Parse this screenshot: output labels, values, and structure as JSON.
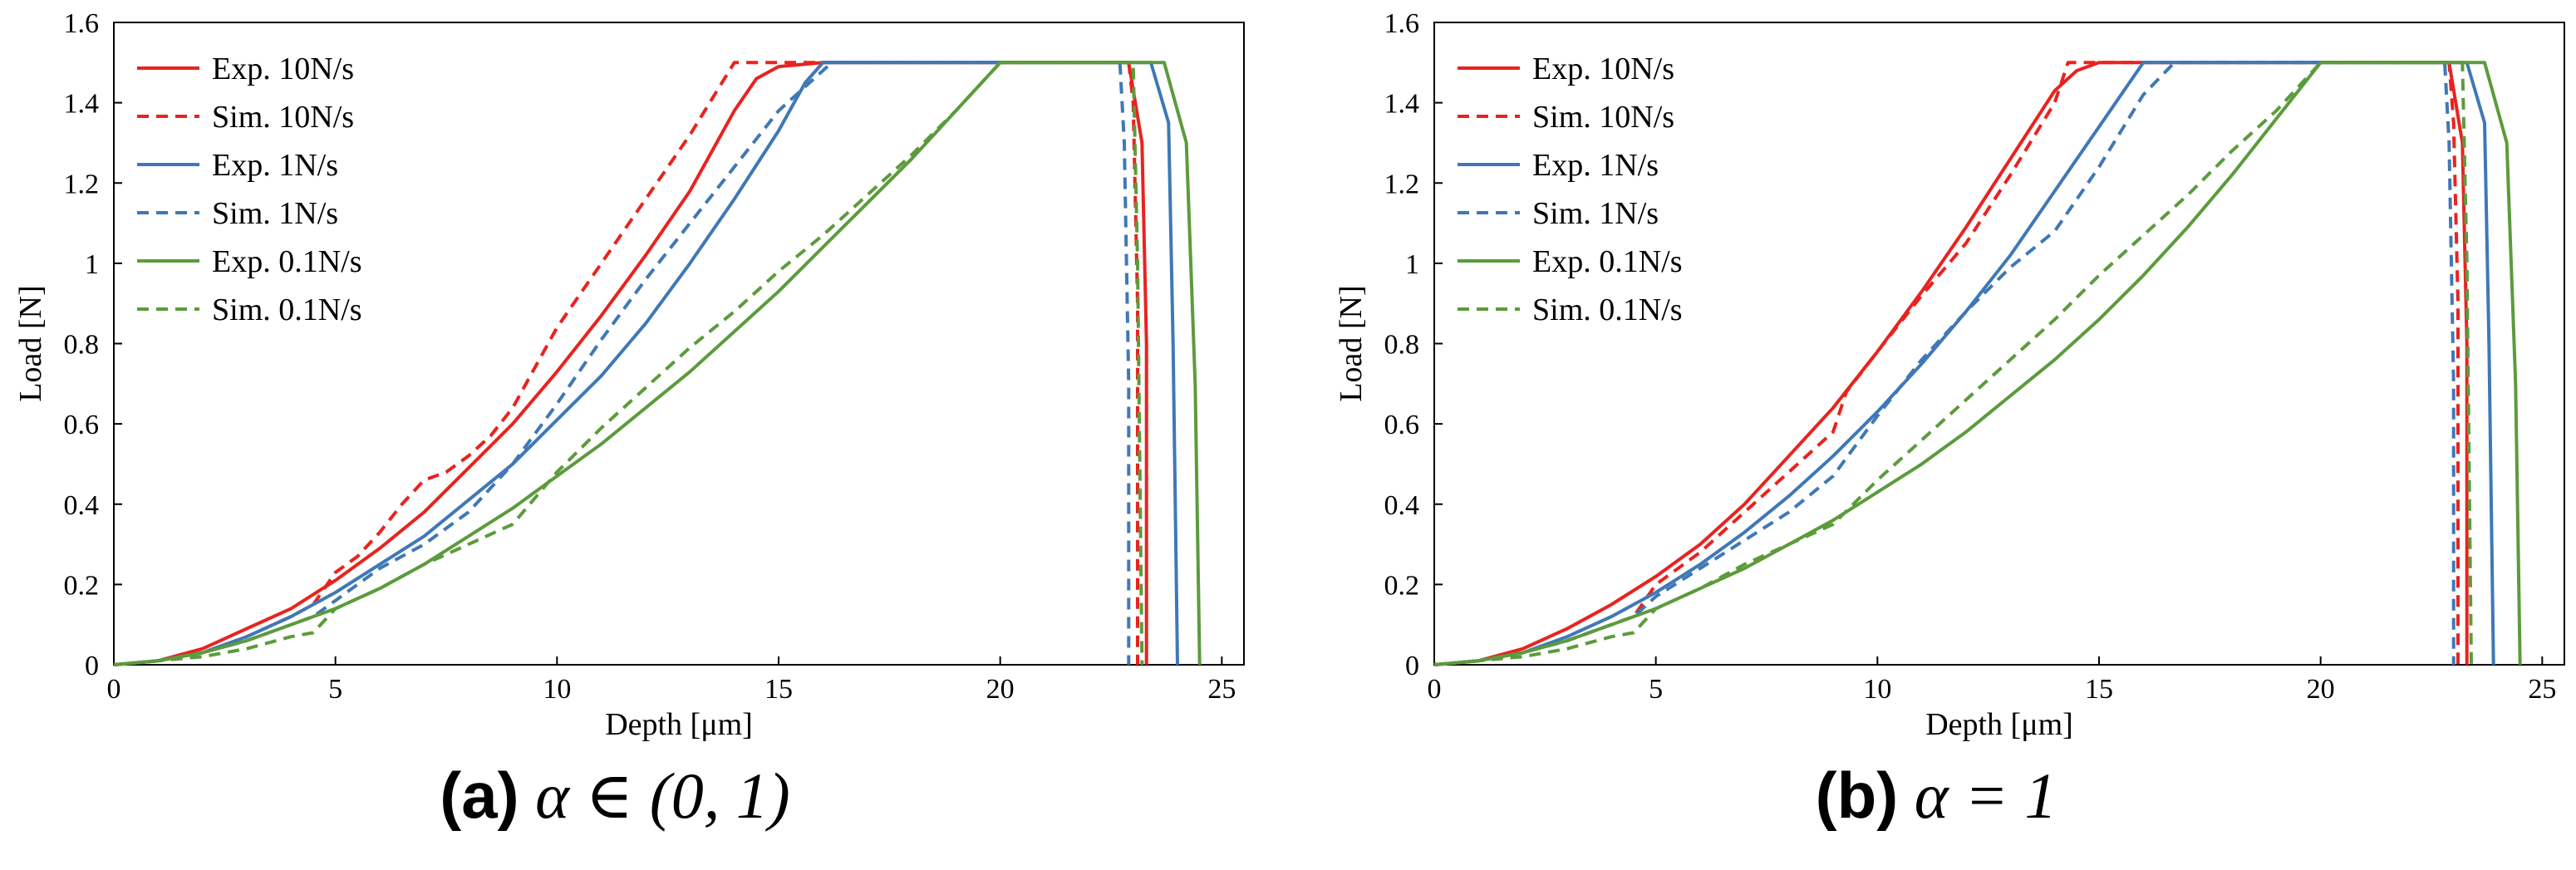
{
  "colors": {
    "red": "#E8231F",
    "blue": "#3F78B6",
    "green": "#5C9B3C",
    "axis": "#000000"
  },
  "captions": [
    {
      "letter": "(a)",
      "math": "α ∈ (0, 1)"
    },
    {
      "letter": "(b)",
      "math": "α = 1"
    }
  ],
  "chart_data": [
    {
      "type": "line",
      "panel": "a",
      "xlabel": "Depth [μm]",
      "ylabel": "Load [N]",
      "xlim": [
        0,
        25.5
      ],
      "ylim": [
        0,
        1.6
      ],
      "xticks": [
        0,
        5,
        10,
        15,
        20,
        25
      ],
      "yticks": [
        0,
        0.2,
        0.4,
        0.6,
        0.8,
        1,
        1.2,
        1.4,
        1.6
      ],
      "grid": false,
      "legend_position": "top-left",
      "series": [
        {
          "name": "Exp. 10N/s",
          "color": "red",
          "style": "solid",
          "x": [
            0,
            1,
            2,
            3,
            4,
            5,
            6,
            7,
            8,
            9,
            10,
            11,
            12,
            13,
            13.5,
            14,
            14.5,
            15,
            16,
            20,
            22.9,
            23.2,
            23.3,
            23.3
          ],
          "y": [
            0,
            0.01,
            0.04,
            0.09,
            0.14,
            0.21,
            0.29,
            0.38,
            0.49,
            0.6,
            0.73,
            0.87,
            1.02,
            1.18,
            1.28,
            1.38,
            1.46,
            1.49,
            1.5,
            1.5,
            1.5,
            1.3,
            0.8,
            0
          ]
        },
        {
          "name": "Sim. 10N/s",
          "color": "red",
          "style": "dashed",
          "x": [
            0,
            1,
            2,
            3,
            4,
            4.5,
            5,
            5.5,
            6,
            6.5,
            7,
            7.5,
            8,
            8.5,
            9,
            10,
            11,
            12,
            13,
            14,
            14.3,
            20,
            22.9,
            23.0,
            23.1,
            23.1
          ],
          "y": [
            0,
            0.01,
            0.03,
            0.07,
            0.12,
            0.15,
            0.23,
            0.27,
            0.33,
            0.4,
            0.46,
            0.48,
            0.52,
            0.57,
            0.64,
            0.84,
            1.0,
            1.16,
            1.32,
            1.5,
            1.5,
            1.5,
            1.5,
            1.4,
            0.9,
            0
          ]
        },
        {
          "name": "Exp. 1N/s",
          "color": "blue",
          "style": "solid",
          "x": [
            0,
            1,
            2,
            3,
            4,
            5,
            6,
            7,
            8,
            9,
            10,
            11,
            12,
            13,
            14,
            15,
            15.6,
            16,
            20,
            23.4,
            23.8,
            23.9,
            24.0
          ],
          "y": [
            0,
            0.01,
            0.03,
            0.07,
            0.12,
            0.18,
            0.25,
            0.32,
            0.41,
            0.5,
            0.61,
            0.72,
            0.85,
            1.0,
            1.16,
            1.33,
            1.45,
            1.5,
            1.5,
            1.5,
            1.35,
            0.8,
            0
          ]
        },
        {
          "name": "Sim. 1N/s",
          "color": "blue",
          "style": "dashed",
          "x": [
            0,
            1,
            2,
            3,
            4,
            4.5,
            5,
            6,
            7,
            8,
            9,
            10,
            11,
            12,
            13,
            14,
            15,
            16.2,
            20,
            22.7,
            22.8,
            22.9,
            22.9
          ],
          "y": [
            0,
            0.01,
            0.03,
            0.06,
            0.1,
            0.12,
            0.16,
            0.24,
            0.3,
            0.38,
            0.5,
            0.65,
            0.81,
            0.96,
            1.1,
            1.24,
            1.38,
            1.5,
            1.5,
            1.5,
            1.3,
            0.7,
            0
          ]
        },
        {
          "name": "Exp. 0.1N/s",
          "color": "green",
          "style": "solid",
          "x": [
            0,
            1,
            2,
            3,
            4,
            5,
            6,
            7,
            8,
            9,
            10,
            11,
            12,
            13,
            14,
            15,
            16,
            17,
            18,
            19,
            20,
            23.7,
            24.2,
            24.4,
            24.5
          ],
          "y": [
            0,
            0.01,
            0.03,
            0.06,
            0.1,
            0.14,
            0.19,
            0.25,
            0.32,
            0.39,
            0.47,
            0.55,
            0.64,
            0.73,
            0.83,
            0.93,
            1.04,
            1.15,
            1.26,
            1.38,
            1.5,
            1.5,
            1.3,
            0.7,
            0
          ]
        },
        {
          "name": "Sim. 0.1N/s",
          "color": "green",
          "style": "dashed",
          "x": [
            0,
            1,
            2,
            3,
            4,
            4.5,
            5,
            6,
            7,
            8,
            9,
            10,
            11,
            12,
            13,
            14,
            15,
            16,
            17,
            18,
            19,
            20,
            23.0,
            23.1,
            23.2
          ],
          "y": [
            0,
            0.01,
            0.02,
            0.04,
            0.07,
            0.08,
            0.14,
            0.19,
            0.25,
            0.3,
            0.35,
            0.48,
            0.59,
            0.69,
            0.79,
            0.88,
            0.98,
            1.07,
            1.17,
            1.27,
            1.38,
            1.5,
            1.5,
            1.0,
            0
          ]
        }
      ]
    },
    {
      "type": "line",
      "panel": "b",
      "xlabel": "Depth [μm]",
      "ylabel": "Load [N]",
      "xlim": [
        0,
        25.5
      ],
      "ylim": [
        0,
        1.6
      ],
      "xticks": [
        0,
        5,
        10,
        15,
        20,
        25
      ],
      "yticks": [
        0,
        0.2,
        0.4,
        0.6,
        0.8,
        1,
        1.2,
        1.4,
        1.6
      ],
      "grid": false,
      "legend_position": "top-left",
      "series": [
        {
          "name": "Exp. 10N/s",
          "color": "red",
          "style": "solid",
          "x": [
            0,
            1,
            2,
            3,
            4,
            5,
            6,
            7,
            8,
            9,
            10,
            11,
            12,
            13,
            14,
            14.5,
            15,
            20,
            22.9,
            23.2,
            23.3,
            23.3
          ],
          "y": [
            0,
            0.01,
            0.04,
            0.09,
            0.15,
            0.22,
            0.3,
            0.4,
            0.52,
            0.64,
            0.78,
            0.93,
            1.09,
            1.26,
            1.43,
            1.48,
            1.5,
            1.5,
            1.5,
            1.3,
            0.8,
            0
          ]
        },
        {
          "name": "Sim. 10N/s",
          "color": "red",
          "style": "dashed",
          "x": [
            0,
            1,
            2,
            3,
            4,
            4.5,
            5,
            6,
            7,
            8,
            9,
            9.3,
            10,
            11,
            12,
            13,
            14,
            14.3,
            20,
            22.9,
            23.0,
            23.1,
            23.1
          ],
          "y": [
            0,
            0.01,
            0.03,
            0.06,
            0.1,
            0.12,
            0.2,
            0.28,
            0.38,
            0.48,
            0.58,
            0.68,
            0.78,
            0.92,
            1.05,
            1.22,
            1.4,
            1.5,
            1.5,
            1.5,
            1.35,
            0.9,
            0
          ]
        },
        {
          "name": "Exp. 1N/s",
          "color": "blue",
          "style": "solid",
          "x": [
            0,
            1,
            2,
            3,
            4,
            5,
            6,
            7,
            8,
            9,
            10,
            11,
            12,
            13,
            14,
            15,
            16,
            20,
            23.3,
            23.7,
            23.8,
            23.9
          ],
          "y": [
            0,
            0.01,
            0.03,
            0.07,
            0.12,
            0.18,
            0.25,
            0.33,
            0.42,
            0.52,
            0.63,
            0.75,
            0.88,
            1.02,
            1.18,
            1.34,
            1.5,
            1.5,
            1.5,
            1.35,
            0.8,
            0
          ]
        },
        {
          "name": "Sim. 1N/s",
          "color": "blue",
          "style": "dashed",
          "x": [
            0,
            1,
            2,
            3,
            4,
            4.5,
            5,
            6,
            7,
            8,
            9,
            10,
            11,
            12,
            13,
            14,
            15,
            16,
            16.7,
            20,
            22.8,
            22.9,
            23.0,
            23.0
          ],
          "y": [
            0,
            0.01,
            0.03,
            0.06,
            0.1,
            0.12,
            0.17,
            0.24,
            0.31,
            0.38,
            0.47,
            0.62,
            0.76,
            0.88,
            0.99,
            1.08,
            1.24,
            1.42,
            1.5,
            1.5,
            1.5,
            1.3,
            0.7,
            0
          ]
        },
        {
          "name": "Exp. 0.1N/s",
          "color": "green",
          "style": "solid",
          "x": [
            0,
            1,
            2,
            3,
            4,
            5,
            6,
            7,
            8,
            9,
            10,
            11,
            12,
            13,
            14,
            15,
            16,
            17,
            18,
            19,
            20,
            23.7,
            24.2,
            24.4,
            24.5
          ],
          "y": [
            0,
            0.01,
            0.03,
            0.06,
            0.1,
            0.14,
            0.19,
            0.24,
            0.3,
            0.36,
            0.43,
            0.5,
            0.58,
            0.67,
            0.76,
            0.86,
            0.97,
            1.09,
            1.22,
            1.36,
            1.5,
            1.5,
            1.3,
            0.7,
            0
          ]
        },
        {
          "name": "Sim. 0.1N/s",
          "color": "green",
          "style": "dashed",
          "x": [
            0,
            1,
            2,
            3,
            4,
            4.5,
            5,
            6,
            7,
            8,
            9,
            10,
            11,
            12,
            13,
            14,
            15,
            16,
            17,
            18,
            19,
            20,
            23.2,
            23.3,
            23.4
          ],
          "y": [
            0,
            0.01,
            0.02,
            0.04,
            0.07,
            0.08,
            0.14,
            0.19,
            0.25,
            0.3,
            0.35,
            0.46,
            0.56,
            0.66,
            0.76,
            0.86,
            0.97,
            1.07,
            1.17,
            1.28,
            1.38,
            1.5,
            1.5,
            1.0,
            0
          ]
        }
      ]
    }
  ]
}
